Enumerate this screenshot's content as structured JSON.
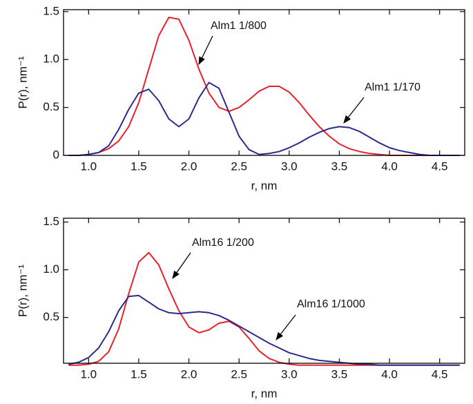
{
  "chart_data": [
    {
      "type": "line",
      "xlabel": "r, nm",
      "ylabel": "P(r), nm⁻¹",
      "xlim": [
        0.75,
        4.75
      ],
      "ylim": [
        0,
        1.52
      ],
      "xticks": [
        {
          "value": 1.0,
          "label": "1.0"
        },
        1.5,
        {
          "value": 2.0,
          "label": "2.0"
        },
        2.5,
        {
          "value": 3.0,
          "label": "3.0"
        },
        3.5,
        {
          "value": 4.0,
          "label": "4.0"
        },
        4.5
      ],
      "yticks": [
        0,
        0.5,
        {
          "value": 1.0,
          "label": "1.0"
        },
        1.5
      ],
      "x": [
        0.8,
        0.9,
        1.0,
        1.1,
        1.2,
        1.3,
        1.4,
        1.5,
        1.6,
        1.7,
        1.8,
        1.9,
        2.0,
        2.1,
        2.2,
        2.3,
        2.4,
        2.5,
        2.6,
        2.7,
        2.8,
        2.9,
        3.0,
        3.1,
        3.2,
        3.3,
        3.4,
        3.5,
        3.6,
        3.7,
        3.8,
        3.9,
        4.0,
        4.1,
        4.2,
        4.3,
        4.4,
        4.5,
        4.6,
        4.7
      ],
      "series": [
        {
          "name": "Alm1 1/800",
          "color": "#e8202a",
          "values": [
            0,
            0,
            0.01,
            0.03,
            0.07,
            0.15,
            0.3,
            0.55,
            0.9,
            1.25,
            1.44,
            1.42,
            1.2,
            0.9,
            0.65,
            0.5,
            0.46,
            0.5,
            0.58,
            0.67,
            0.72,
            0.72,
            0.66,
            0.55,
            0.42,
            0.3,
            0.2,
            0.12,
            0.07,
            0.04,
            0.02,
            0.01,
            0,
            0,
            0,
            0,
            0,
            0,
            0,
            0
          ]
        },
        {
          "name": "Alm1 1/170",
          "color": "#2b2a8c",
          "values": [
            0,
            0,
            0.01,
            0.03,
            0.1,
            0.27,
            0.48,
            0.65,
            0.69,
            0.57,
            0.38,
            0.3,
            0.38,
            0.6,
            0.76,
            0.7,
            0.45,
            0.2,
            0.06,
            0.01,
            0.02,
            0.04,
            0.08,
            0.13,
            0.19,
            0.24,
            0.28,
            0.3,
            0.29,
            0.25,
            0.19,
            0.13,
            0.08,
            0.05,
            0.03,
            0.01,
            0,
            0,
            0,
            0
          ]
        }
      ]
    },
    {
      "type": "line",
      "xlabel": "r, nm",
      "ylabel": "P(r), nm⁻¹",
      "xlim": [
        0.75,
        4.75
      ],
      "ylim": [
        0.02,
        1.54
      ],
      "xticks": [
        {
          "value": 1.0,
          "label": "1.0"
        },
        1.5,
        {
          "value": 2.0,
          "label": "2.0"
        },
        2.5,
        {
          "value": 3.0,
          "label": "3.0"
        },
        3.5,
        {
          "value": 4.0,
          "label": "4.0"
        },
        4.5
      ],
      "yticks": [
        0.5,
        {
          "value": 1.0,
          "label": "1.0"
        },
        1.5
      ],
      "x": [
        0.8,
        0.9,
        1.0,
        1.1,
        1.2,
        1.3,
        1.4,
        1.5,
        1.6,
        1.7,
        1.8,
        1.9,
        2.0,
        2.1,
        2.2,
        2.3,
        2.4,
        2.5,
        2.6,
        2.7,
        2.8,
        2.9,
        3.0,
        3.1,
        3.2,
        3.3,
        3.4,
        3.5,
        3.6,
        3.7,
        3.8,
        3.9,
        4.0,
        4.1,
        4.2,
        4.3,
        4.4,
        4.5,
        4.6,
        4.7
      ],
      "series": [
        {
          "name": "Alm16 1/200",
          "color": "#e8202a",
          "values": [
            0,
            0,
            0.01,
            0.04,
            0.14,
            0.38,
            0.75,
            1.08,
            1.18,
            1.05,
            0.8,
            0.57,
            0.4,
            0.34,
            0.37,
            0.44,
            0.46,
            0.4,
            0.28,
            0.15,
            0.07,
            0.03,
            0.01,
            0,
            0,
            0,
            0,
            0,
            0,
            0,
            0,
            0,
            0,
            0,
            0,
            0,
            0,
            0,
            0,
            0
          ]
        },
        {
          "name": "Alm16 1/1000",
          "color": "#2b2a8c",
          "values": [
            0.01,
            0.03,
            0.08,
            0.18,
            0.35,
            0.57,
            0.72,
            0.73,
            0.66,
            0.59,
            0.55,
            0.54,
            0.55,
            0.56,
            0.55,
            0.52,
            0.47,
            0.41,
            0.35,
            0.29,
            0.23,
            0.18,
            0.13,
            0.1,
            0.07,
            0.05,
            0.04,
            0.03,
            0.02,
            0.01,
            0.01,
            0,
            0,
            0,
            0,
            0,
            0,
            0,
            0,
            0
          ]
        }
      ]
    }
  ]
}
